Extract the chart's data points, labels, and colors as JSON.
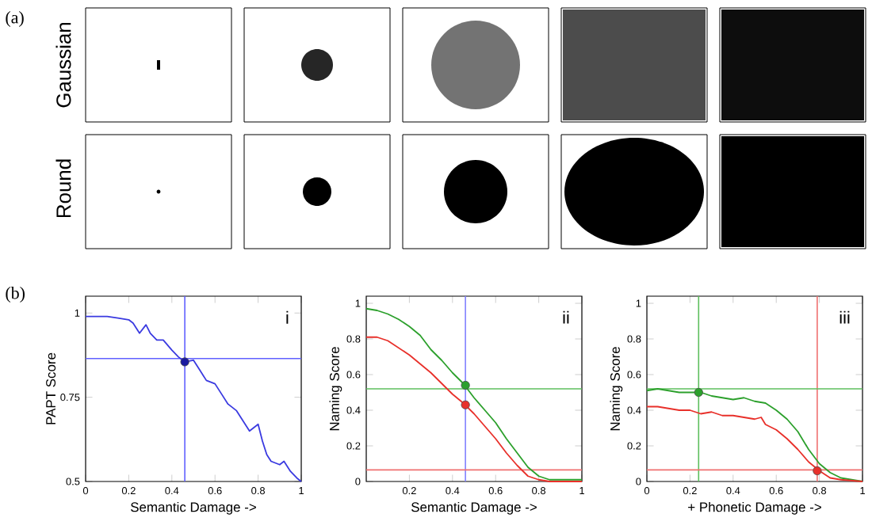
{
  "chart_data": [
    {
      "type": "other",
      "annotations": [
        "(a)",
        "Gaussian",
        "Round",
        "(b)"
      ]
    },
    {
      "type": "line",
      "xlabel": "Semantic Damage ->",
      "ylabel": "PAPT Score",
      "annotations": [
        "i"
      ],
      "xlim": [
        0,
        1
      ],
      "ylim": [
        0.5,
        1.05
      ],
      "xticks": [
        0,
        0.2,
        0.4,
        0.6,
        0.8,
        1
      ],
      "yticks": [
        0.5,
        0.75,
        1
      ],
      "series": [
        {
          "type": "line",
          "color": "#3a3ae0",
          "x": [
            0,
            0.05,
            0.1,
            0.15,
            0.2,
            0.22,
            0.25,
            0.28,
            0.3,
            0.33,
            0.36,
            0.4,
            0.43,
            0.46,
            0.5,
            0.53,
            0.56,
            0.6,
            0.63,
            0.66,
            0.7,
            0.73,
            0.76,
            0.8,
            0.82,
            0.84,
            0.86,
            0.9,
            0.92,
            0.95,
            0.98,
            1
          ],
          "values": [
            0.99,
            0.99,
            0.99,
            0.985,
            0.98,
            0.97,
            0.94,
            0.965,
            0.94,
            0.92,
            0.92,
            0.89,
            0.87,
            0.855,
            0.86,
            0.83,
            0.8,
            0.79,
            0.76,
            0.73,
            0.71,
            0.68,
            0.65,
            0.67,
            0.62,
            0.58,
            0.56,
            0.55,
            0.56,
            0.53,
            0.51,
            0.5
          ]
        },
        {
          "type": "scatter",
          "color": "#1a1aa0",
          "x": [
            0.46
          ],
          "values": [
            0.855
          ]
        }
      ],
      "ref_lines": [
        {
          "axis": "x",
          "value": 0.46,
          "color": "#6060ff"
        },
        {
          "axis": "y",
          "value": 0.865,
          "color": "#6060ff"
        }
      ]
    },
    {
      "type": "line",
      "xlabel": "Semantic Damage ->",
      "ylabel": "Naming Score",
      "annotations": [
        "ii"
      ],
      "xlim": [
        0,
        1
      ],
      "ylim": [
        0,
        1.04
      ],
      "xticks": [
        0.2,
        0.4,
        0.6,
        0.8,
        1
      ],
      "yticks": [
        0,
        0.2,
        0.4,
        0.6,
        0.8,
        1
      ],
      "series": [
        {
          "type": "line",
          "color": "#2ca02c",
          "x": [
            0,
            0.05,
            0.1,
            0.15,
            0.2,
            0.25,
            0.3,
            0.35,
            0.4,
            0.45,
            0.5,
            0.55,
            0.6,
            0.65,
            0.7,
            0.75,
            0.8,
            0.85,
            0.9,
            1
          ],
          "values": [
            0.97,
            0.96,
            0.94,
            0.91,
            0.87,
            0.82,
            0.74,
            0.68,
            0.61,
            0.55,
            0.47,
            0.4,
            0.33,
            0.24,
            0.16,
            0.08,
            0.03,
            0.01,
            0.01,
            0.01
          ]
        },
        {
          "type": "line",
          "color": "#e8302a",
          "x": [
            0,
            0.05,
            0.1,
            0.15,
            0.2,
            0.25,
            0.3,
            0.35,
            0.4,
            0.45,
            0.5,
            0.55,
            0.6,
            0.65,
            0.7,
            0.75,
            0.8,
            0.85,
            1
          ],
          "values": [
            0.81,
            0.81,
            0.79,
            0.75,
            0.71,
            0.66,
            0.61,
            0.55,
            0.49,
            0.44,
            0.38,
            0.31,
            0.24,
            0.16,
            0.09,
            0.03,
            0.01,
            0,
            0
          ]
        },
        {
          "type": "scatter",
          "color": "#2ca02c",
          "x": [
            0.46
          ],
          "values": [
            0.54
          ]
        },
        {
          "type": "scatter",
          "color": "#e8302a",
          "x": [
            0.46
          ],
          "values": [
            0.43
          ]
        }
      ],
      "ref_lines": [
        {
          "axis": "x",
          "value": 0.46,
          "color": "#8080ff"
        },
        {
          "axis": "y",
          "value": 0.52,
          "color": "#5cbf5c"
        },
        {
          "axis": "y",
          "value": 0.065,
          "color": "#f07070"
        }
      ]
    },
    {
      "type": "line",
      "xlabel": "+ Phonetic Damage ->",
      "ylabel": "Naming Score",
      "annotations": [
        "iii"
      ],
      "xlim": [
        0,
        1
      ],
      "ylim": [
        0,
        1.04
      ],
      "xticks": [
        0,
        0.2,
        0.4,
        0.6,
        0.8,
        1
      ],
      "yticks": [
        0,
        0.2,
        0.4,
        0.6,
        0.8,
        1
      ],
      "series": [
        {
          "type": "line",
          "color": "#2ca02c",
          "x": [
            0,
            0.05,
            0.1,
            0.15,
            0.2,
            0.25,
            0.3,
            0.35,
            0.4,
            0.45,
            0.5,
            0.55,
            0.6,
            0.65,
            0.7,
            0.75,
            0.8,
            0.85,
            0.9,
            0.95,
            1
          ],
          "values": [
            0.51,
            0.52,
            0.51,
            0.5,
            0.5,
            0.5,
            0.48,
            0.47,
            0.46,
            0.47,
            0.45,
            0.44,
            0.4,
            0.35,
            0.28,
            0.18,
            0.1,
            0.05,
            0.02,
            0.01,
            0
          ]
        },
        {
          "type": "line",
          "color": "#e8302a",
          "x": [
            0,
            0.05,
            0.1,
            0.15,
            0.2,
            0.25,
            0.3,
            0.35,
            0.4,
            0.45,
            0.5,
            0.53,
            0.55,
            0.6,
            0.65,
            0.7,
            0.75,
            0.8,
            0.85,
            0.9,
            1
          ],
          "values": [
            0.42,
            0.42,
            0.41,
            0.4,
            0.4,
            0.38,
            0.39,
            0.37,
            0.37,
            0.36,
            0.35,
            0.36,
            0.32,
            0.29,
            0.24,
            0.18,
            0.11,
            0.06,
            0.02,
            0.01,
            0
          ]
        },
        {
          "type": "scatter",
          "color": "#2ca02c",
          "x": [
            0.24
          ],
          "values": [
            0.5
          ]
        },
        {
          "type": "scatter",
          "color": "#e8302a",
          "x": [
            0.79
          ],
          "values": [
            0.06
          ]
        }
      ],
      "ref_lines": [
        {
          "axis": "x",
          "value": 0.24,
          "color": "#5cbf5c"
        },
        {
          "axis": "x",
          "value": 0.79,
          "color": "#f07070"
        },
        {
          "axis": "y",
          "value": 0.52,
          "color": "#5cbf5c"
        },
        {
          "axis": "y",
          "value": 0.065,
          "color": "#f07070"
        }
      ]
    }
  ]
}
